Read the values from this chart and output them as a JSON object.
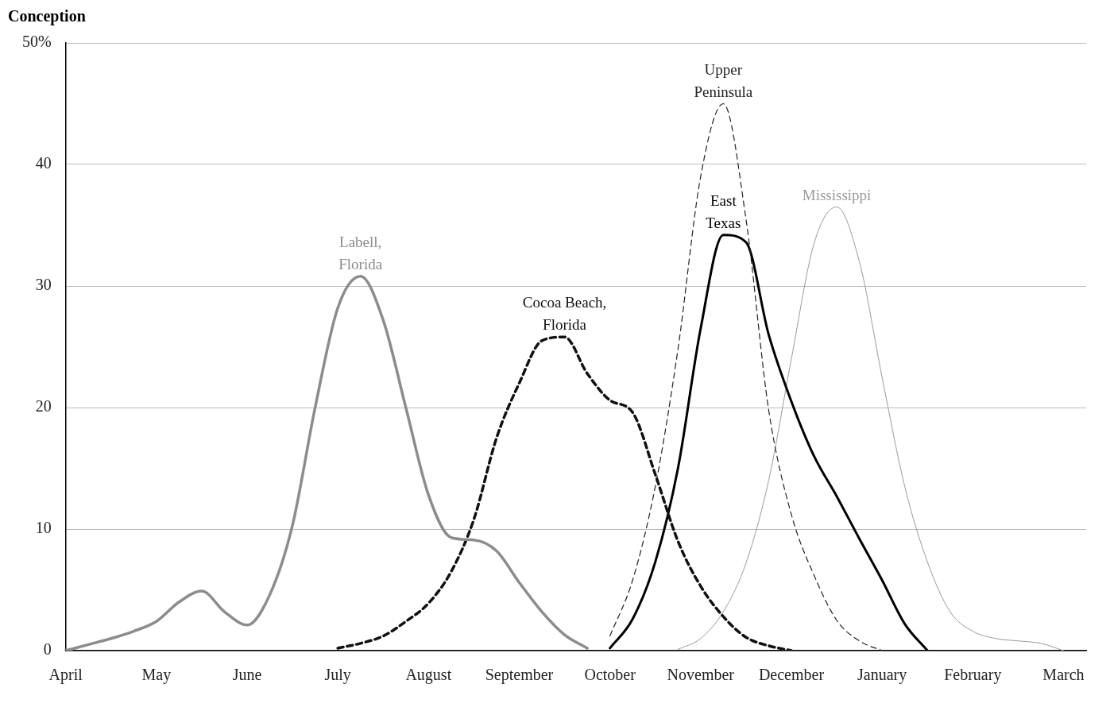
{
  "chart_data": {
    "type": "line",
    "ylabel": "Conception",
    "ylim": [
      0,
      50
    ],
    "categories": [
      "April",
      null,
      null,
      null,
      "May",
      null,
      null,
      null,
      "June",
      null,
      null,
      null,
      "July",
      null,
      null,
      null,
      "August",
      null,
      null,
      null,
      "September",
      null,
      null,
      null,
      "October",
      null,
      null,
      null,
      "November",
      null,
      null,
      null,
      "December",
      null,
      null,
      null,
      "January",
      null,
      null,
      null,
      "February",
      null,
      null,
      null,
      "March",
      null
    ],
    "yticks": [
      0,
      10,
      20,
      30,
      40,
      {
        "value": 50,
        "label": "50%"
      }
    ],
    "grid": "y",
    "legend": false,
    "marker": "none",
    "series": [
      {
        "name": "Labell, Florida",
        "color": "#8c8c8c",
        "line_style": "solid",
        "values": [
          0,
          0.5,
          1,
          1.6,
          2.4,
          4,
          4.9,
          3.2,
          2.1,
          4.6,
          10.3,
          20,
          28.2,
          30.8,
          27.2,
          20,
          12.8,
          9.3,
          9.1,
          8.2,
          5.6,
          3.2,
          1.3,
          0.2,
          null,
          null,
          null,
          null,
          null,
          null,
          null,
          null,
          null,
          null,
          null,
          null,
          null,
          null,
          null,
          null,
          null,
          null,
          null,
          null,
          null,
          null
        ]
      },
      {
        "name": "Cocoa Beach, Florida",
        "color": "#111111",
        "line_style": "dashed",
        "values": [
          null,
          null,
          null,
          null,
          null,
          null,
          null,
          null,
          null,
          null,
          null,
          null,
          0.2,
          0.6,
          1.2,
          2.4,
          3.9,
          6.5,
          10.8,
          17.5,
          22,
          25.5,
          25.8,
          22.8,
          20.6,
          19.6,
          14.5,
          9,
          5.3,
          2.8,
          1.1,
          0.4,
          0,
          null,
          null,
          null,
          null,
          null,
          null,
          null,
          null,
          null,
          null,
          null,
          null,
          null
        ]
      },
      {
        "name": "Upper Peninsula",
        "color": "#222222",
        "line_style": "dashed",
        "values": [
          null,
          null,
          null,
          null,
          null,
          null,
          null,
          null,
          null,
          null,
          null,
          null,
          null,
          null,
          null,
          null,
          null,
          null,
          null,
          null,
          null,
          null,
          null,
          null,
          1.2,
          5.8,
          13.5,
          24.8,
          39,
          45,
          35.5,
          19.8,
          11.2,
          6.2,
          2.5,
          0.8,
          0,
          null,
          null,
          null,
          null,
          null,
          null,
          null,
          null,
          null
        ]
      },
      {
        "name": "East Texas",
        "color": "#000000",
        "line_style": "solid",
        "values": [
          null,
          null,
          null,
          null,
          null,
          null,
          null,
          null,
          null,
          null,
          null,
          null,
          null,
          null,
          null,
          null,
          null,
          null,
          null,
          null,
          null,
          null,
          null,
          null,
          0.2,
          2.6,
          7.3,
          15,
          26.5,
          34.2,
          33.6,
          26,
          20.5,
          16,
          12.7,
          9.2,
          5.8,
          2.2,
          0,
          null,
          null,
          null,
          null,
          null,
          null,
          null
        ]
      },
      {
        "name": "Mississippi",
        "color": "#9a9a9a",
        "line_style": "solid",
        "values": [
          null,
          null,
          null,
          null,
          null,
          null,
          null,
          null,
          null,
          null,
          null,
          null,
          null,
          null,
          null,
          null,
          null,
          null,
          null,
          null,
          null,
          null,
          null,
          null,
          null,
          null,
          null,
          0.1,
          1,
          3.2,
          7.2,
          14,
          24,
          33.5,
          36.5,
          32,
          22.5,
          13.5,
          7.3,
          3.2,
          1.6,
          1,
          0.8,
          0.6,
          0,
          null
        ]
      }
    ]
  }
}
